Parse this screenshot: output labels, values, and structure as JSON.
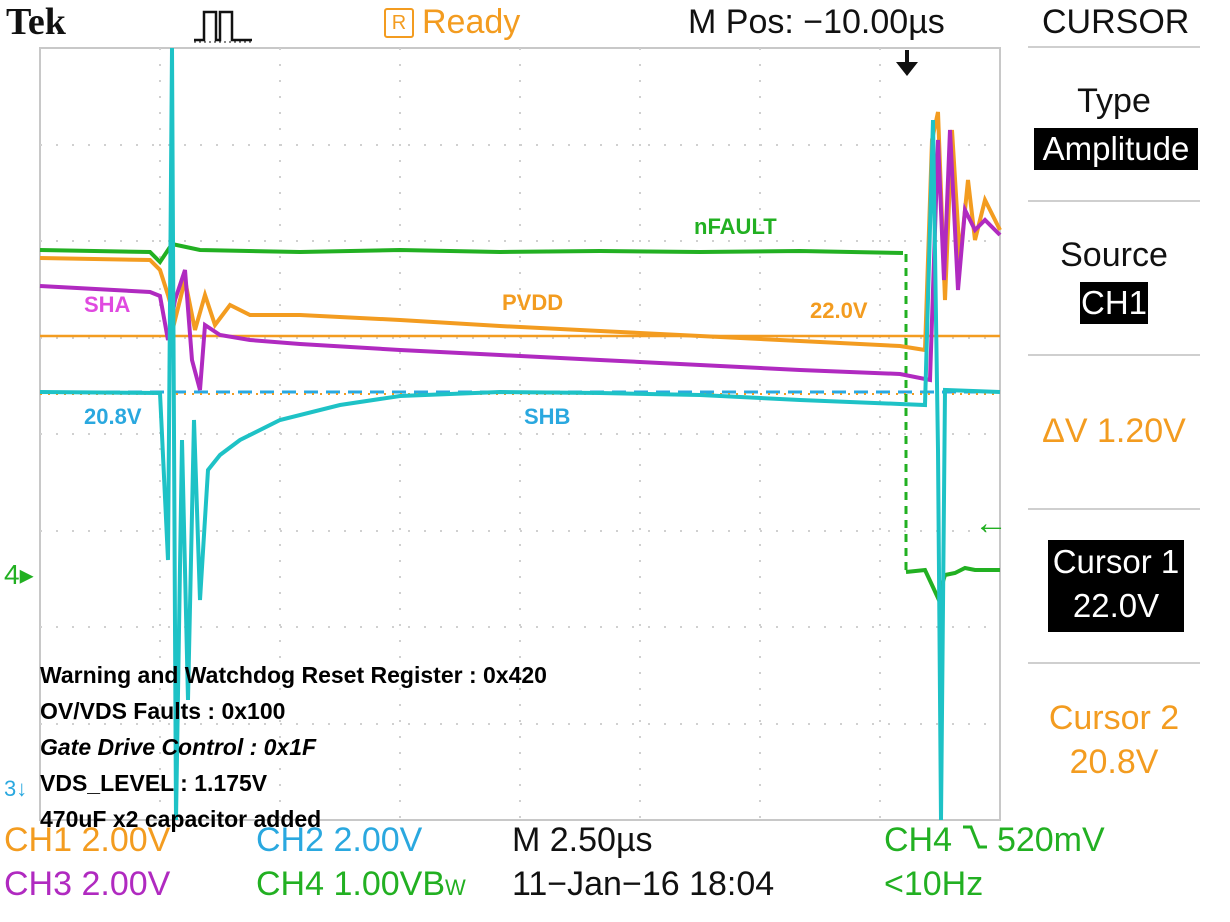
{
  "header": {
    "brand": "Tek",
    "trigger_icon": "pulse-trigger-icon",
    "status_box": "R",
    "status": "Ready",
    "mpos_label": "M Pos: −10.00",
    "mpos_unit": "µs",
    "menu_title": "CURSOR"
  },
  "menu": {
    "type_label": "Type",
    "type_value": "Amplitude",
    "source_label": "Source",
    "source_value": "CH1",
    "delta_label": "ΔV 1.20V",
    "cursor1_label": "Cursor 1",
    "cursor1_value": "22.0V",
    "cursor2_label": "Cursor 2",
    "cursor2_value": "20.8V"
  },
  "markers": {
    "ch4_left": "4",
    "ch3_left": "3"
  },
  "labels": {
    "nfault": "nFAULT",
    "sha": "SHA",
    "pvdd": "PVDD",
    "cursor1_readout": "22.0V",
    "cursor2_readout": "20.8V",
    "shb": "SHB"
  },
  "notes": [
    "Warning and Watchdog Reset Register : 0x420",
    "OV/VDS Faults : 0x100",
    "Gate Drive Control : 0x1F",
    "VDS_LEVEL : 1.175V",
    "470uF x2 capacitor added"
  ],
  "footer": {
    "ch1": "CH1  2.00V",
    "ch2": "CH2  2.00V",
    "timebase": "M 2.50",
    "timebase_unit": "µs",
    "trigger": "CH4",
    "trigger_level": "520mV",
    "ch3": "CH3  2.00V",
    "ch4": "CH4  1.00VB",
    "ch4_bw": "W",
    "date": "11−Jan−16 18:04",
    "freq": "<10Hz"
  },
  "colors": {
    "ch1": "#f39c20",
    "ch2": "#2aa8df",
    "ch3": "#b02ac0",
    "ch4": "#22b022",
    "teal": "#1ec2c6"
  }
}
